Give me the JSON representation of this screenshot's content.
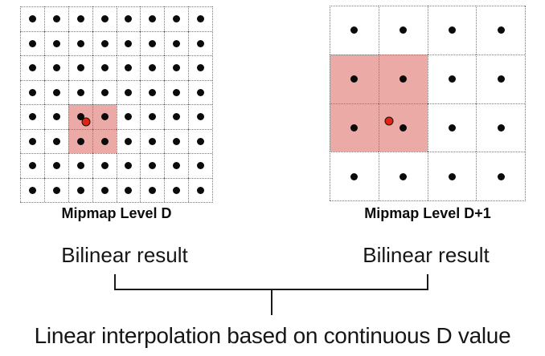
{
  "panels": [
    {
      "id": "level-d",
      "label": "Mipmap Level D",
      "caption": "Bilinear result",
      "grid": {
        "rows": 8,
        "cols": 8
      },
      "highlight": {
        "row": 4,
        "col": 2,
        "row_span": 2,
        "col_span": 2
      },
      "sample_point": {
        "u": 0.342,
        "v": 0.592
      }
    },
    {
      "id": "level-d-plus-1",
      "label": "Mipmap Level D+1",
      "caption": "Bilinear result",
      "grid": {
        "rows": 4,
        "cols": 4
      },
      "highlight": {
        "row": 1,
        "col": 0,
        "row_span": 2,
        "col_span": 2
      },
      "sample_point": {
        "u": 0.303,
        "v": 0.594
      }
    }
  ],
  "bottom_caption": "Linear interpolation based on continuous D value",
  "colors": {
    "highlight_fill": "#ecaaa6",
    "texel_dot": "#0b0b0b",
    "sample_dot_fill": "#e02313",
    "sample_dot_border": "#1b1208",
    "grid_line": "#787878",
    "bracket": "#1a1a1a"
  }
}
